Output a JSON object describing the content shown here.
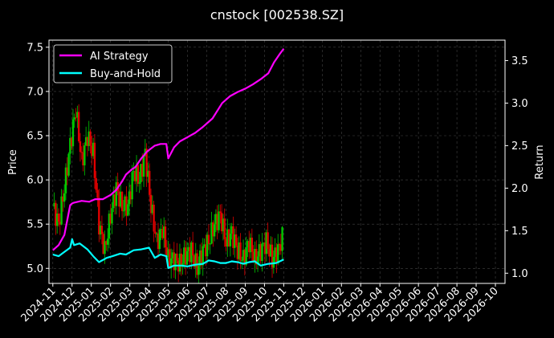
{
  "chart_data": {
    "type": "line",
    "title": "cnstock [002538.SZ]",
    "ylabel_left": "Price",
    "ylabel_right": "Return",
    "x_categories": [
      "2024-11",
      "2024-12",
      "2025-01",
      "2025-02",
      "2025-03",
      "2025-04",
      "2025-05",
      "2025-06",
      "2025-07",
      "2025-08",
      "2025-09",
      "2025-10",
      "2025-11",
      "2025-12",
      "2026-01",
      "2026-02",
      "2026-03",
      "2026-04",
      "2026-05",
      "2026-06",
      "2026-07",
      "2026-08",
      "2026-09",
      "2026-10"
    ],
    "xlim": [
      -0.2,
      23.5
    ],
    "ylim_left": [
      4.83,
      7.58
    ],
    "ylim_right": [
      0.88,
      3.74
    ],
    "left_ticks": [
      "5.0",
      "5.5",
      "6.0",
      "6.5",
      "7.0",
      "7.5"
    ],
    "right_ticks": [
      "1.0",
      "1.5",
      "2.0",
      "2.5",
      "3.0",
      "3.5"
    ],
    "grid": true,
    "legend_position": "top-left",
    "colors": {
      "background": "#000000",
      "up": "#00c800",
      "down": "#e00000",
      "ai": "#ff00ff",
      "bh": "#00ffff",
      "grid": "#444444"
    },
    "series": [
      {
        "name": "AI Strategy",
        "axis": "right",
        "x": [
          0,
          0.3,
          0.6,
          0.9,
          1.0,
          1.1,
          1.5,
          1.9,
          2.2,
          2.6,
          3.0,
          3.3,
          3.6,
          3.8,
          4.1,
          4.3,
          4.6,
          4.9,
          5.3,
          5.6,
          5.9,
          6.0,
          6.3,
          6.6,
          7.0,
          7.4,
          7.8,
          8.3,
          8.8,
          9.2,
          9.6,
          10.0,
          10.4,
          10.8,
          11.2,
          11.5,
          11.8,
          12.0
        ],
        "y": [
          1.27,
          1.33,
          1.45,
          1.8,
          1.82,
          1.83,
          1.85,
          1.84,
          1.87,
          1.87,
          1.92,
          1.98,
          2.08,
          2.16,
          2.22,
          2.25,
          2.35,
          2.43,
          2.5,
          2.52,
          2.52,
          2.35,
          2.48,
          2.55,
          2.6,
          2.65,
          2.72,
          2.82,
          3.0,
          3.08,
          3.13,
          3.17,
          3.22,
          3.28,
          3.35,
          3.48,
          3.58,
          3.64
        ]
      },
      {
        "name": "Buy-and-Hold",
        "axis": "right",
        "x": [
          0,
          0.3,
          0.6,
          0.9,
          1.0,
          1.1,
          1.4,
          1.8,
          2.1,
          2.4,
          2.8,
          3.1,
          3.5,
          3.8,
          4.2,
          4.6,
          5.0,
          5.3,
          5.6,
          5.9,
          6.0,
          6.3,
          6.7,
          7.0,
          7.4,
          7.8,
          8.1,
          8.4,
          8.7,
          9.0,
          9.3,
          9.6,
          9.9,
          10.2,
          10.5,
          10.8,
          11.2,
          11.6,
          12.0
        ],
        "y": [
          1.22,
          1.2,
          1.25,
          1.3,
          1.4,
          1.33,
          1.35,
          1.28,
          1.2,
          1.13,
          1.18,
          1.2,
          1.23,
          1.22,
          1.27,
          1.28,
          1.3,
          1.18,
          1.22,
          1.2,
          1.06,
          1.09,
          1.09,
          1.08,
          1.1,
          1.11,
          1.15,
          1.14,
          1.12,
          1.12,
          1.14,
          1.13,
          1.11,
          1.13,
          1.14,
          1.09,
          1.11,
          1.12,
          1.16
        ]
      },
      {
        "name": "",
        "type": "candlestick",
        "axis": "left",
        "x": [
          0,
          0.3,
          0.6,
          0.9,
          1.2,
          1.5,
          1.8,
          2.1,
          2.4,
          2.7,
          3.0,
          3.3,
          3.6,
          3.9,
          4.2,
          4.5,
          4.8,
          5.1,
          5.4,
          5.7,
          6.0,
          6.3,
          6.6,
          6.9,
          7.2,
          7.5,
          7.8,
          8.1,
          8.4,
          8.7,
          9.0,
          9.3,
          9.6,
          9.9,
          10.2,
          10.5,
          10.8,
          11.1,
          11.4,
          11.7,
          12.0
        ],
        "y": [
          5.7,
          5.5,
          5.9,
          6.4,
          6.8,
          6.2,
          6.5,
          6.3,
          5.5,
          5.2,
          5.6,
          5.9,
          5.7,
          5.7,
          6.1,
          6.0,
          6.3,
          5.7,
          5.3,
          5.45,
          5.1,
          5.1,
          5.05,
          5.15,
          5.2,
          5.0,
          5.2,
          5.3,
          5.5,
          5.6,
          5.3,
          5.4,
          5.2,
          5.1,
          5.3,
          5.1,
          5.2,
          5.3,
          5.1,
          5.2,
          5.4
        ]
      }
    ]
  }
}
